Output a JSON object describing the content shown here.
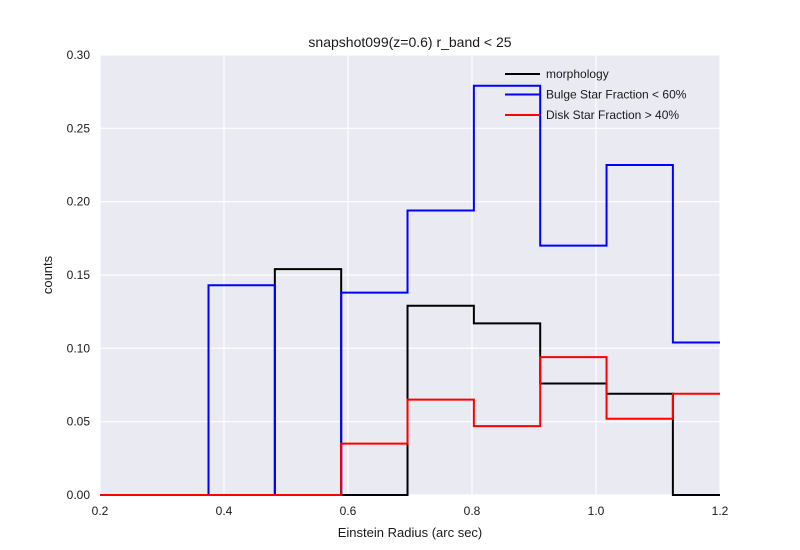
{
  "chart_data": {
    "type": "line",
    "step": "post",
    "title": "snapshot099(z=0.6) r_band < 25",
    "xlabel": "Einstein Radius (arc sec)",
    "ylabel": "counts",
    "xlim": [
      0.2,
      1.2
    ],
    "ylim": [
      0.0,
      0.3
    ],
    "xticks": [
      "0.2",
      "0.4",
      "0.6",
      "0.8",
      "1.0",
      "1.2"
    ],
    "yticks": [
      "0.00",
      "0.05",
      "0.10",
      "0.15",
      "0.20",
      "0.25",
      "0.30"
    ],
    "grid": true,
    "legend_position": "top-right",
    "bin_edges": [
      0.2,
      0.375,
      0.482,
      0.589,
      0.696,
      0.803,
      0.91,
      1.017,
      1.124,
      1.2
    ],
    "series": [
      {
        "name": "morphology",
        "color": "#000000",
        "values": [
          0.0,
          0.0,
          0.154,
          0.0,
          0.129,
          0.117,
          0.076,
          0.069,
          0.0
        ]
      },
      {
        "name": "Bulge Star Fraction < 60%",
        "color": "#0000ff",
        "values": [
          0.0,
          0.143,
          0.0,
          0.138,
          0.194,
          0.279,
          0.17,
          0.225,
          0.104
        ]
      },
      {
        "name": "Disk Star Fraction > 40%",
        "color": "#ff0000",
        "values": [
          0.0,
          0.0,
          0.0,
          0.035,
          0.065,
          0.047,
          0.094,
          0.052,
          0.069
        ]
      }
    ]
  }
}
